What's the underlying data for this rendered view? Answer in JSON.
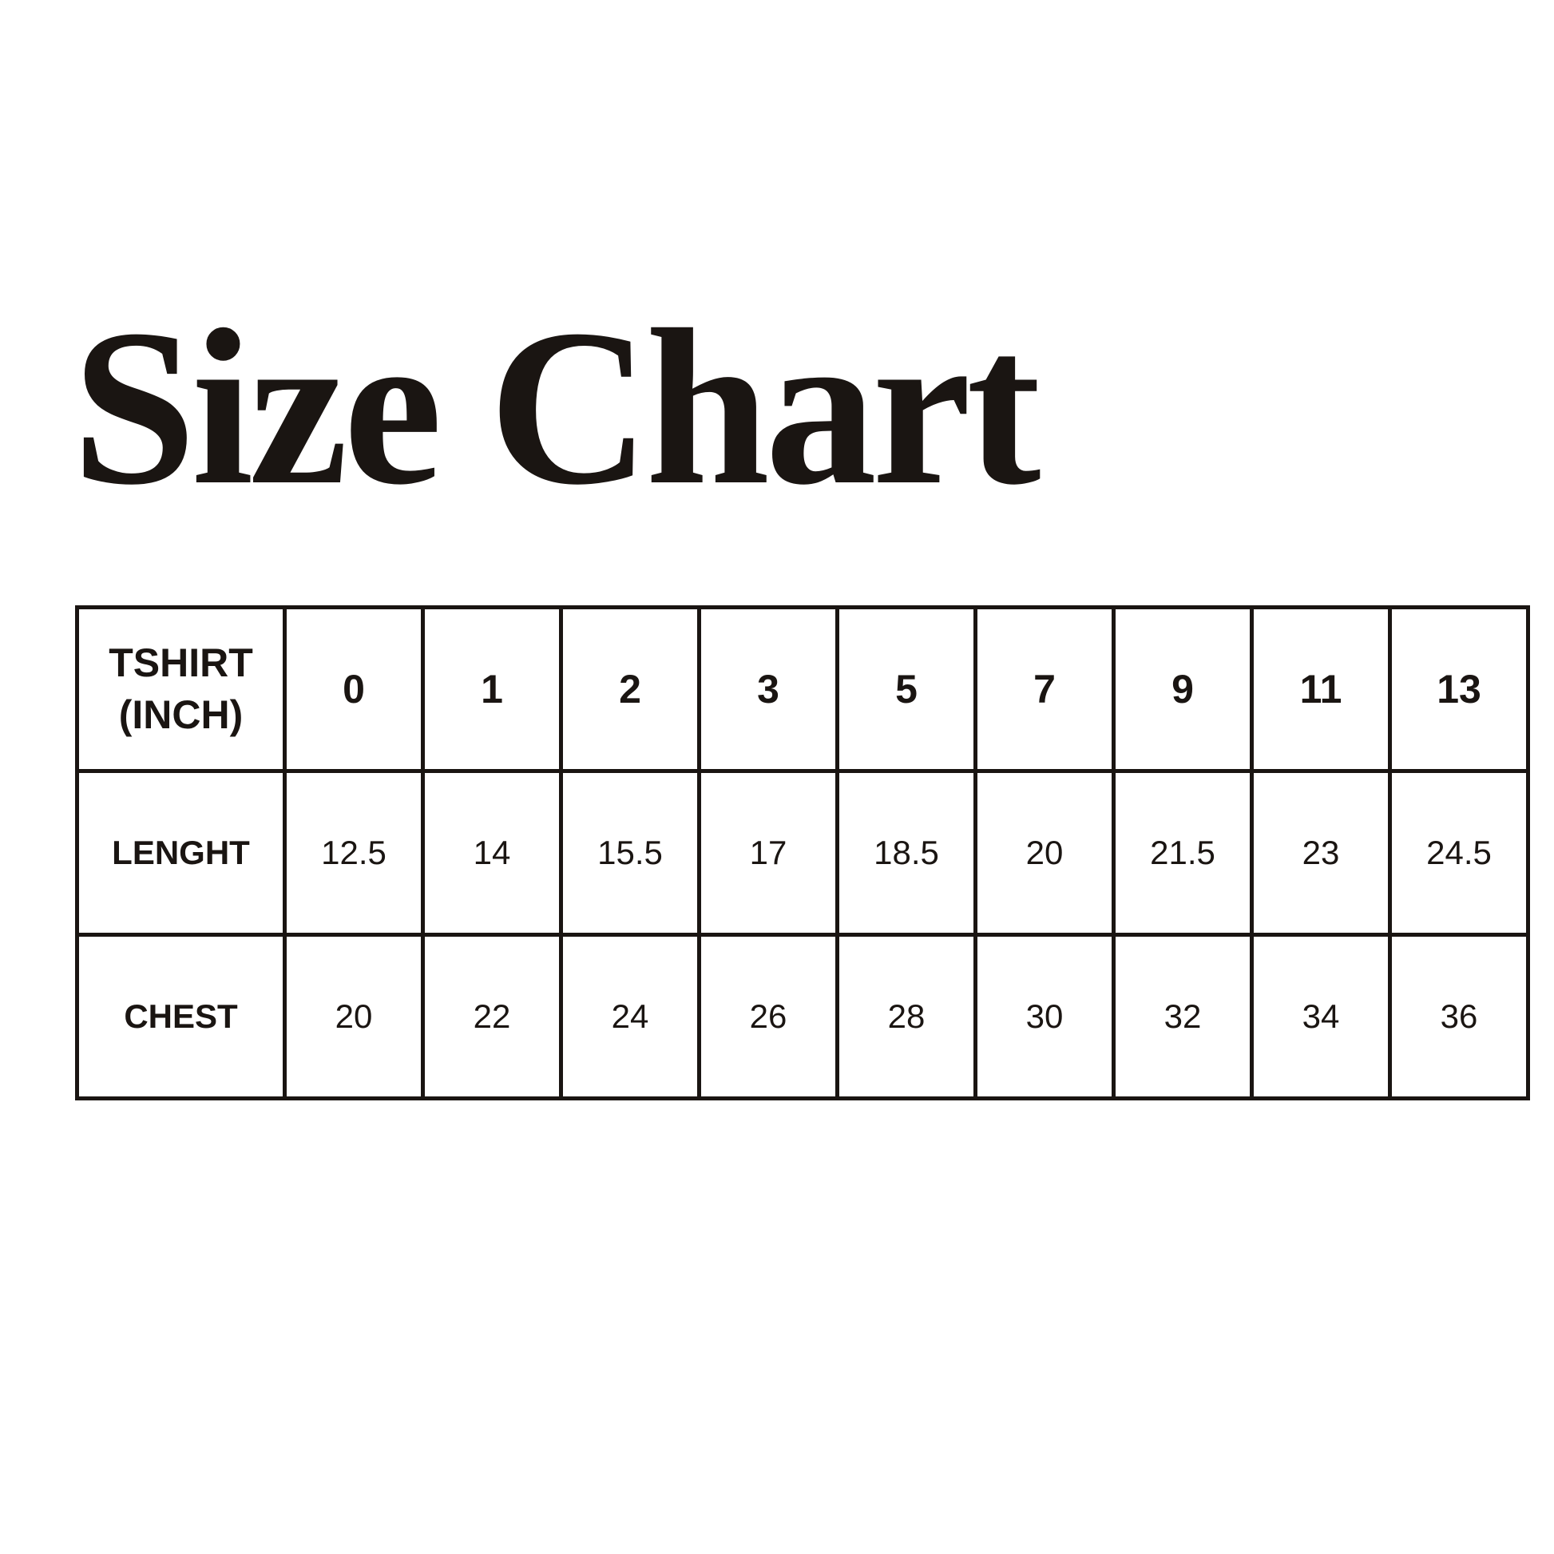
{
  "title": "Size Chart",
  "table": {
    "header_label_line1": "TSHIRT",
    "header_label_line2": "(INCH)",
    "sizes": [
      "0",
      "1",
      "2",
      "3",
      "5",
      "7",
      "9",
      "11",
      "13"
    ],
    "rows": [
      {
        "label": "LENGHT",
        "values": [
          "12.5",
          "14",
          "15.5",
          "17",
          "18.5",
          "20",
          "21.5",
          "23",
          "24.5"
        ]
      },
      {
        "label": "CHEST",
        "values": [
          "20",
          "22",
          "24",
          "26",
          "28",
          "30",
          "32",
          "34",
          "36"
        ]
      }
    ]
  }
}
